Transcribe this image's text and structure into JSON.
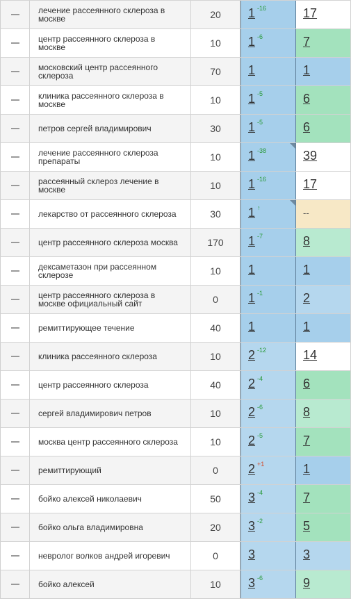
{
  "colors": {
    "pos_top": "#a6cfeb",
    "pos_mid": "#b5d7ee",
    "green_dark": "#a3e2bd",
    "green_light": "#b8ead0",
    "white": "#ffffff",
    "beige": "#f7e8c6"
  },
  "rows": [
    {
      "keyword": "лечение рассеянного склероза в москве",
      "freq": "20",
      "pos1": "1",
      "delta": "-16",
      "delta_neg": false,
      "corner": false,
      "pos1_color": "#a6cfeb",
      "pos2": "17",
      "pos2_color": "#ffffff"
    },
    {
      "keyword": "центр рассеянного склероза в москве",
      "freq": "10",
      "pos1": "1",
      "delta": "-6",
      "delta_neg": false,
      "corner": false,
      "pos1_color": "#a6cfeb",
      "pos2": "7",
      "pos2_color": "#a3e2bd"
    },
    {
      "keyword": "московский центр рассеянного склероза",
      "freq": "70",
      "pos1": "1",
      "delta": "",
      "delta_neg": false,
      "corner": false,
      "pos1_color": "#a6cfeb",
      "pos2": "1",
      "pos2_color": "#a6cfeb"
    },
    {
      "keyword": "клиника рассеянного склероза в москве",
      "freq": "10",
      "pos1": "1",
      "delta": "-5",
      "delta_neg": false,
      "corner": false,
      "pos1_color": "#a6cfeb",
      "pos2": "6",
      "pos2_color": "#a3e2bd"
    },
    {
      "keyword": "петров сергей владимирович",
      "freq": "30",
      "pos1": "1",
      "delta": "-5",
      "delta_neg": false,
      "corner": false,
      "pos1_color": "#a6cfeb",
      "pos2": "6",
      "pos2_color": "#a3e2bd"
    },
    {
      "keyword": "лечение рассеянного склероза препараты",
      "freq": "10",
      "pos1": "1",
      "delta": "-38",
      "delta_neg": false,
      "corner": true,
      "pos1_color": "#a6cfeb",
      "pos2": "39",
      "pos2_color": "#ffffff"
    },
    {
      "keyword": "рассеянный склероз лечение в москве",
      "freq": "10",
      "pos1": "1",
      "delta": "-16",
      "delta_neg": false,
      "corner": false,
      "pos1_color": "#a6cfeb",
      "pos2": "17",
      "pos2_color": "#ffffff"
    },
    {
      "keyword": "лекарство от рассеянного склероза",
      "freq": "30",
      "pos1": "1",
      "delta": "↑",
      "delta_neg": false,
      "corner": true,
      "pos1_color": "#a6cfeb",
      "pos2": "--",
      "pos2_color": "#f7e8c6"
    },
    {
      "keyword": "центр рассеянного склероза москва",
      "freq": "170",
      "pos1": "1",
      "delta": "-7",
      "delta_neg": false,
      "corner": false,
      "pos1_color": "#a6cfeb",
      "pos2": "8",
      "pos2_color": "#b8ead0"
    },
    {
      "keyword": "дексаметазон при рассеянном склерозе",
      "freq": "10",
      "pos1": "1",
      "delta": "",
      "delta_neg": false,
      "corner": false,
      "pos1_color": "#a6cfeb",
      "pos2": "1",
      "pos2_color": "#a6cfeb"
    },
    {
      "keyword": "центр рассеянного склероза в москве официальный сайт",
      "freq": "0",
      "pos1": "1",
      "delta": "-1",
      "delta_neg": false,
      "corner": false,
      "pos1_color": "#a6cfeb",
      "pos2": "2",
      "pos2_color": "#b5d7ee"
    },
    {
      "keyword": "ремиттирующее течение",
      "freq": "40",
      "pos1": "1",
      "delta": "",
      "delta_neg": false,
      "corner": false,
      "pos1_color": "#a6cfeb",
      "pos2": "1",
      "pos2_color": "#a6cfeb"
    },
    {
      "keyword": "клиника рассеянного склероза",
      "freq": "10",
      "pos1": "2",
      "delta": "-12",
      "delta_neg": false,
      "corner": false,
      "pos1_color": "#b5d7ee",
      "pos2": "14",
      "pos2_color": "#ffffff"
    },
    {
      "keyword": "центр рассеянного склероза",
      "freq": "40",
      "pos1": "2",
      "delta": "-4",
      "delta_neg": false,
      "corner": false,
      "pos1_color": "#b5d7ee",
      "pos2": "6",
      "pos2_color": "#a3e2bd"
    },
    {
      "keyword": "сергей владимирович петров",
      "freq": "10",
      "pos1": "2",
      "delta": "-6",
      "delta_neg": false,
      "corner": false,
      "pos1_color": "#b5d7ee",
      "pos2": "8",
      "pos2_color": "#b8ead0"
    },
    {
      "keyword": "москва центр рассеянного склероза",
      "freq": "10",
      "pos1": "2",
      "delta": "-5",
      "delta_neg": false,
      "corner": false,
      "pos1_color": "#b5d7ee",
      "pos2": "7",
      "pos2_color": "#a3e2bd"
    },
    {
      "keyword": "ремиттирующий",
      "freq": "0",
      "pos1": "2",
      "delta": "+1",
      "delta_neg": true,
      "corner": false,
      "pos1_color": "#b5d7ee",
      "pos2": "1",
      "pos2_color": "#a6cfeb"
    },
    {
      "keyword": "бойко алексей николаевич",
      "freq": "50",
      "pos1": "3",
      "delta": "-4",
      "delta_neg": false,
      "corner": false,
      "pos1_color": "#b5d7ee",
      "pos2": "7",
      "pos2_color": "#a3e2bd"
    },
    {
      "keyword": "бойко ольга владимировна",
      "freq": "20",
      "pos1": "3",
      "delta": "-2",
      "delta_neg": false,
      "corner": false,
      "pos1_color": "#b5d7ee",
      "pos2": "5",
      "pos2_color": "#a3e2bd"
    },
    {
      "keyword": "невролог волков андрей игоревич",
      "freq": "0",
      "pos1": "3",
      "delta": "",
      "delta_neg": false,
      "corner": false,
      "pos1_color": "#b5d7ee",
      "pos2": "3",
      "pos2_color": "#b5d7ee"
    },
    {
      "keyword": "бойко алексей",
      "freq": "10",
      "pos1": "3",
      "delta": "-6",
      "delta_neg": false,
      "corner": false,
      "pos1_color": "#b5d7ee",
      "pos2": "9",
      "pos2_color": "#b8ead0"
    }
  ]
}
